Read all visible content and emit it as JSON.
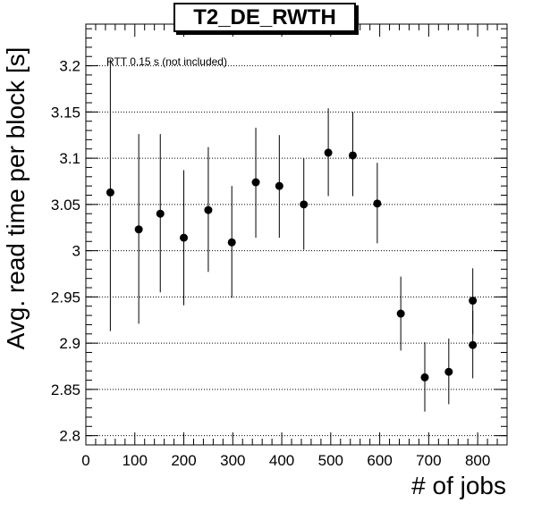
{
  "chart_data": {
    "type": "scatter",
    "title": "T2_DE_RWTH",
    "xlabel": "# of jobs",
    "ylabel": "Avg. read time per block [s]",
    "annotation": "RTT 0.15 s (not included)",
    "xlim": [
      0,
      860
    ],
    "ylim": [
      2.79,
      3.245
    ],
    "x_ticks": [
      0,
      100,
      200,
      300,
      400,
      500,
      600,
      700,
      800
    ],
    "y_ticks": [
      2.8,
      2.85,
      2.9,
      2.95,
      3,
      3.05,
      3.1,
      3.15,
      3.2
    ],
    "x_tick_labels": [
      "0",
      "100",
      "200",
      "300",
      "400",
      "500",
      "600",
      "700",
      "800"
    ],
    "y_tick_labels": [
      "2.8",
      "2.85",
      "2.9",
      "2.95",
      "3",
      "3.05",
      "3.1",
      "3.15",
      "3.2"
    ],
    "grid": "horizontal dotted",
    "marker_color": "#000000",
    "points": [
      {
        "x": 50,
        "y": 3.063,
        "ylo": 2.913,
        "yhi": 3.207
      },
      {
        "x": 108,
        "y": 3.023,
        "ylo": 2.921,
        "yhi": 3.126
      },
      {
        "x": 152,
        "y": 3.04,
        "ylo": 2.955,
        "yhi": 3.126
      },
      {
        "x": 200,
        "y": 3.014,
        "ylo": 2.941,
        "yhi": 3.087
      },
      {
        "x": 250,
        "y": 3.044,
        "ylo": 2.977,
        "yhi": 3.112
      },
      {
        "x": 298,
        "y": 3.009,
        "ylo": 2.949,
        "yhi": 3.07
      },
      {
        "x": 347,
        "y": 3.074,
        "ylo": 3.014,
        "yhi": 3.133
      },
      {
        "x": 395,
        "y": 3.07,
        "ylo": 3.014,
        "yhi": 3.125
      },
      {
        "x": 445,
        "y": 3.05,
        "ylo": 3.001,
        "yhi": 3.1
      },
      {
        "x": 495,
        "y": 3.106,
        "ylo": 3.059,
        "yhi": 3.154
      },
      {
        "x": 545,
        "y": 3.103,
        "ylo": 3.059,
        "yhi": 3.15
      },
      {
        "x": 595,
        "y": 3.051,
        "ylo": 3.008,
        "yhi": 3.095
      },
      {
        "x": 643,
        "y": 2.932,
        "ylo": 2.892,
        "yhi": 2.972
      },
      {
        "x": 692,
        "y": 2.863,
        "ylo": 2.826,
        "yhi": 2.901
      },
      {
        "x": 741,
        "y": 2.869,
        "ylo": 2.834,
        "yhi": 2.905
      },
      {
        "x": 790,
        "y": 2.946,
        "ylo": 2.91,
        "yhi": 2.981
      },
      {
        "x": 790,
        "y": 2.898,
        "ylo": 2.862,
        "yhi": 2.935
      }
    ]
  }
}
